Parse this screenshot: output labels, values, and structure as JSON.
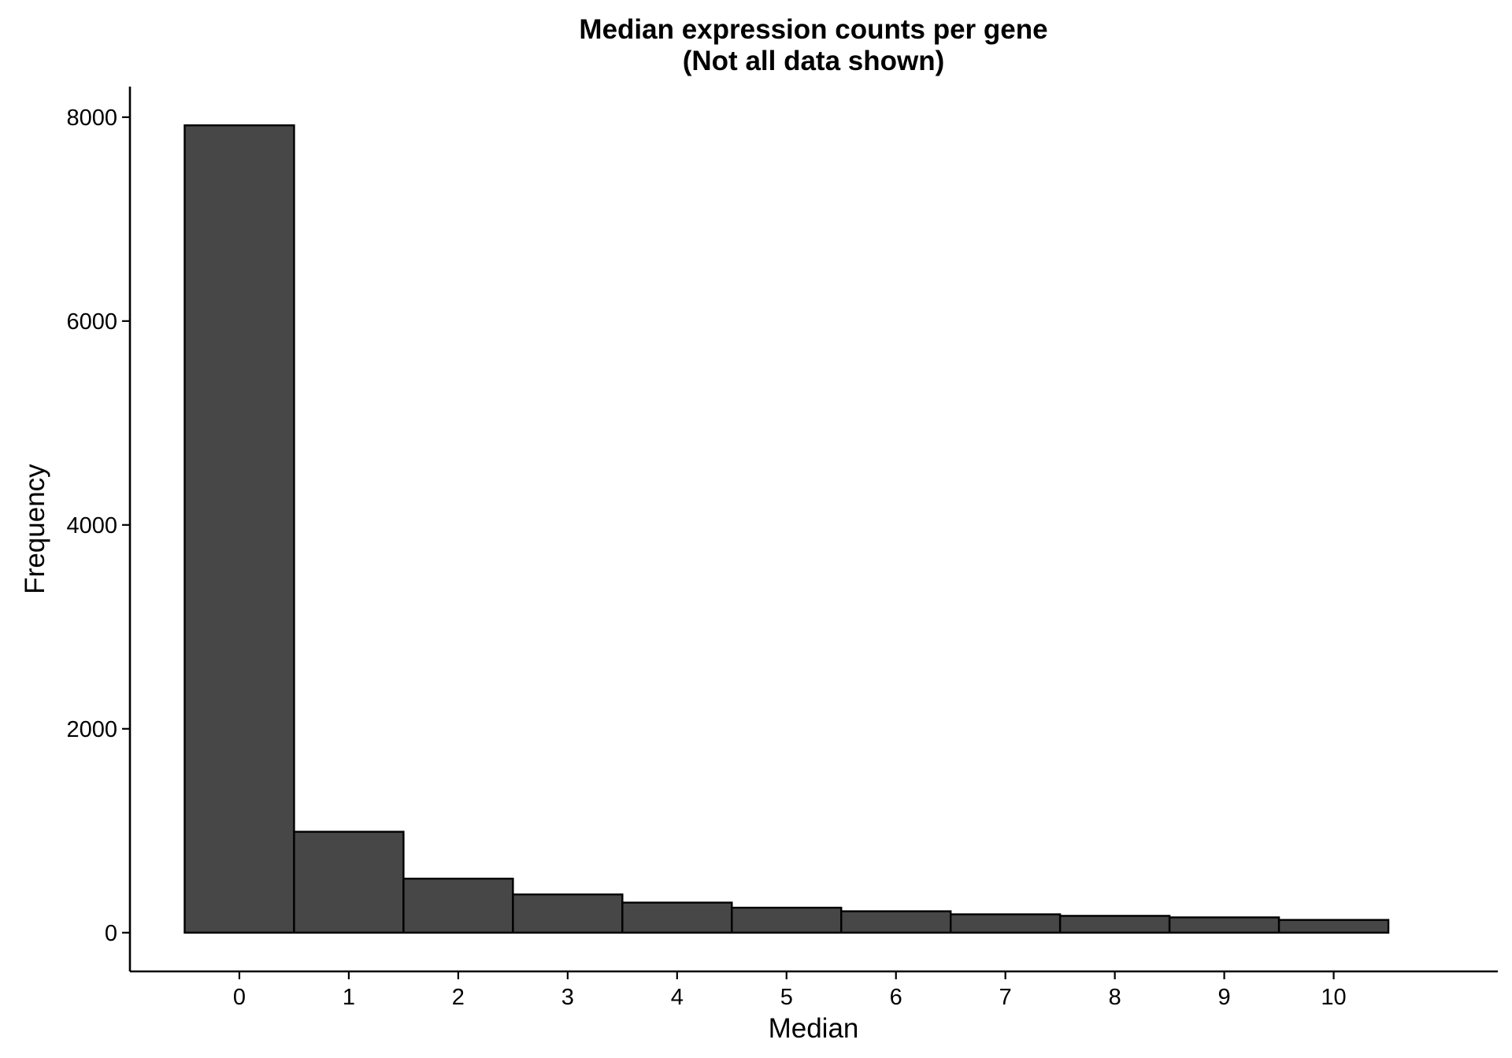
{
  "chart_data": {
    "type": "bar",
    "title": "Median expression counts per gene",
    "subtitle": "(Not all data shown)",
    "xlabel": "Median",
    "ylabel": "Frequency",
    "categories": [
      "0",
      "1",
      "2",
      "3",
      "4",
      "5",
      "6",
      "7",
      "8",
      "9",
      "10"
    ],
    "values": [
      7920,
      990,
      530,
      375,
      295,
      245,
      210,
      180,
      165,
      150,
      125
    ],
    "xlim": [
      -1,
      11.5
    ],
    "ylim": [
      -380,
      8300
    ],
    "yticks": [
      0,
      2000,
      4000,
      6000,
      8000
    ],
    "yticklabels": [
      "0",
      "2000",
      "4000",
      "6000",
      "8000"
    ],
    "grid": false,
    "legend": "none",
    "bar_fill": "#474747",
    "bar_edge": "#000000"
  }
}
